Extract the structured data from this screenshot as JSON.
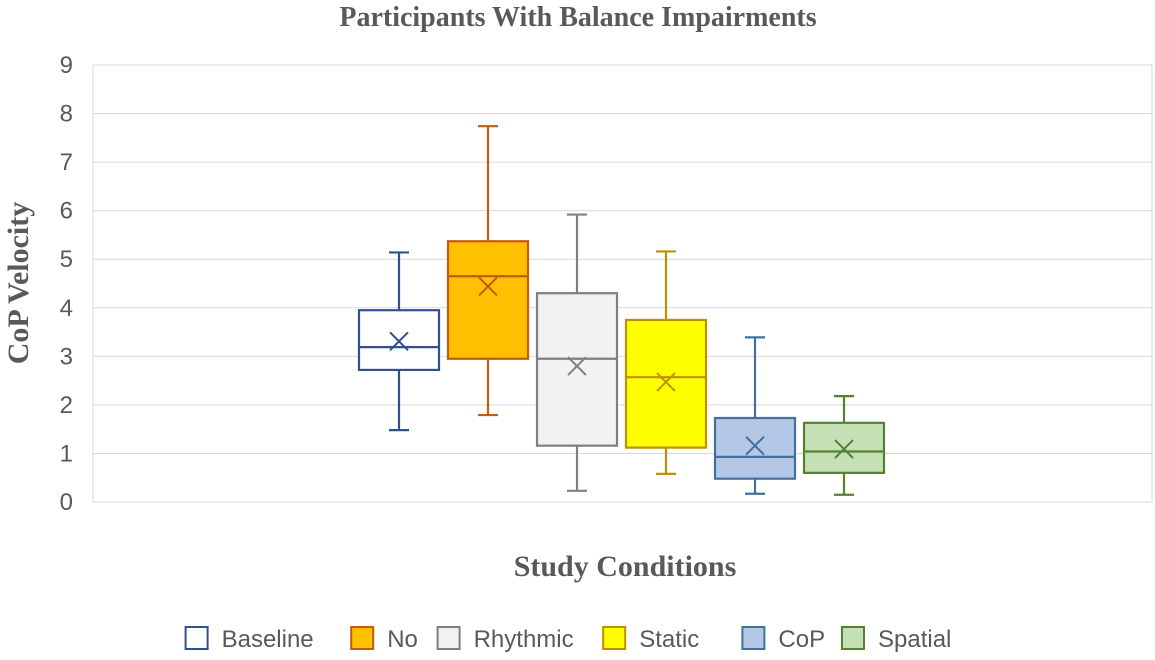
{
  "chart_data": {
    "type": "box",
    "title": "Participants With Balance Impairments",
    "xlabel": "Study Conditions",
    "ylabel": "CoP  Velocity",
    "ylim": [
      0,
      9
    ],
    "yticks": [
      0,
      1,
      2,
      3,
      4,
      5,
      6,
      7,
      8,
      9
    ],
    "grid": true,
    "legend_position": "bottom",
    "series": [
      {
        "name": "Baseline",
        "min": 1.48,
        "q1": 2.72,
        "median": 3.19,
        "q3": 3.95,
        "max": 5.14,
        "mean": 3.31,
        "stroke": "#2f528f",
        "fill": "#ffffff"
      },
      {
        "name": "No",
        "min": 1.79,
        "q1": 2.95,
        "median": 4.65,
        "q3": 5.37,
        "max": 7.74,
        "mean": 4.44,
        "stroke": "#c55a11",
        "fill": "#ffc000"
      },
      {
        "name": "Rhythmic",
        "min": 0.23,
        "q1": 1.16,
        "median": 2.95,
        "q3": 4.3,
        "max": 5.92,
        "mean": 2.8,
        "stroke": "#7f7f7f",
        "fill": "#f2f2f2"
      },
      {
        "name": "Static",
        "min": 0.58,
        "q1": 1.12,
        "median": 2.57,
        "q3": 3.75,
        "max": 5.16,
        "mean": 2.47,
        "stroke": "#bf9000",
        "fill": "#ffff00"
      },
      {
        "name": "CoP",
        "min": 0.17,
        "q1": 0.48,
        "median": 0.93,
        "q3": 1.73,
        "max": 3.39,
        "mean": 1.16,
        "stroke": "#41719c",
        "fill": "#b4c7e7"
      },
      {
        "name": "Spatial",
        "min": 0.15,
        "q1": 0.6,
        "median": 1.04,
        "q3": 1.63,
        "max": 2.18,
        "mean": 1.09,
        "stroke": "#548235",
        "fill": "#c5e0b4"
      }
    ]
  }
}
